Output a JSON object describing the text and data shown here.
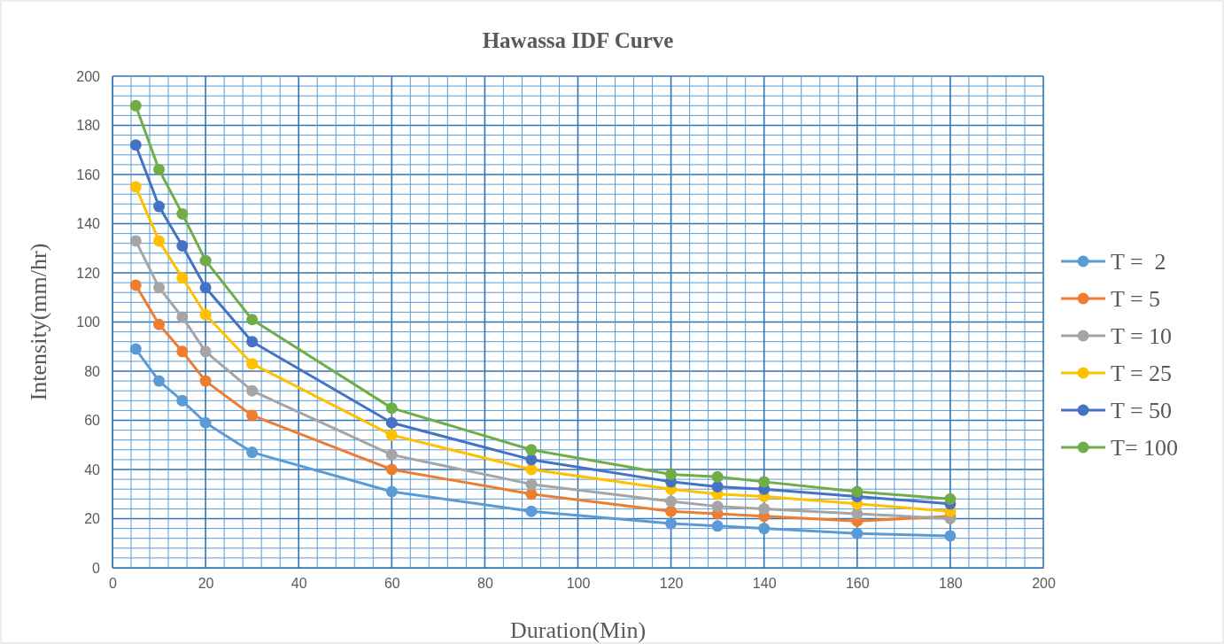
{
  "chart_data": {
    "type": "line",
    "title": "Hawassa IDF Curve",
    "xlabel": "Duration(Min)",
    "ylabel": "Intensity(mm/hr)",
    "x": [
      5,
      10,
      15,
      20,
      30,
      60,
      90,
      120,
      130,
      140,
      160,
      180
    ],
    "xlim": [
      0,
      200
    ],
    "xticks": [
      0,
      {
        "value": 4,
        "label": null
      },
      {
        "value": 8,
        "label": null
      },
      {
        "value": 12,
        "label": null
      },
      {
        "value": 16,
        "label": null
      },
      20,
      {
        "value": 24,
        "label": null
      },
      {
        "value": 28,
        "label": null
      },
      {
        "value": 32,
        "label": null
      },
      {
        "value": 36,
        "label": null
      },
      40,
      {
        "value": 44,
        "label": null
      },
      {
        "value": 48,
        "label": null
      },
      {
        "value": 52,
        "label": null
      },
      {
        "value": 56,
        "label": null
      },
      60,
      {
        "value": 64,
        "label": null
      },
      {
        "value": 68,
        "label": null
      },
      {
        "value": 72,
        "label": null
      },
      {
        "value": 76,
        "label": null
      },
      80,
      {
        "value": 84,
        "label": null
      },
      {
        "value": 88,
        "label": null
      },
      {
        "value": 92,
        "label": null
      },
      {
        "value": 96,
        "label": null
      },
      100,
      {
        "value": 104,
        "label": null
      },
      {
        "value": 108,
        "label": null
      },
      {
        "value": 112,
        "label": null
      },
      {
        "value": 116,
        "label": null
      },
      120,
      {
        "value": 124,
        "label": null
      },
      {
        "value": 128,
        "label": null
      },
      {
        "value": 132,
        "label": null
      },
      {
        "value": 136,
        "label": null
      },
      140,
      {
        "value": 144,
        "label": null
      },
      {
        "value": 148,
        "label": null
      },
      {
        "value": 152,
        "label": null
      },
      {
        "value": 156,
        "label": null
      },
      160,
      {
        "value": 164,
        "label": null
      },
      {
        "value": 168,
        "label": null
      },
      {
        "value": 172,
        "label": null
      },
      {
        "value": 176,
        "label": null
      },
      180,
      {
        "value": 184,
        "label": null
      },
      {
        "value": 188,
        "label": null
      },
      {
        "value": 192,
        "label": null
      },
      {
        "value": 196,
        "label": null
      },
      200
    ],
    "ylim": [
      0,
      200
    ],
    "yticks": [
      0,
      {
        "value": 4,
        "label": null
      },
      {
        "value": 8,
        "label": null
      },
      {
        "value": 12,
        "label": null
      },
      {
        "value": 16,
        "label": null
      },
      20,
      {
        "value": 24,
        "label": null
      },
      {
        "value": 28,
        "label": null
      },
      {
        "value": 32,
        "label": null
      },
      {
        "value": 36,
        "label": null
      },
      40,
      {
        "value": 44,
        "label": null
      },
      {
        "value": 48,
        "label": null
      },
      {
        "value": 52,
        "label": null
      },
      {
        "value": 56,
        "label": null
      },
      60,
      {
        "value": 64,
        "label": null
      },
      {
        "value": 68,
        "label": null
      },
      {
        "value": 72,
        "label": null
      },
      {
        "value": 76,
        "label": null
      },
      80,
      {
        "value": 84,
        "label": null
      },
      {
        "value": 88,
        "label": null
      },
      {
        "value": 92,
        "label": null
      },
      {
        "value": 96,
        "label": null
      },
      100,
      {
        "value": 104,
        "label": null
      },
      {
        "value": 108,
        "label": null
      },
      {
        "value": 112,
        "label": null
      },
      {
        "value": 116,
        "label": null
      },
      120,
      {
        "value": 124,
        "label": null
      },
      {
        "value": 128,
        "label": null
      },
      {
        "value": 132,
        "label": null
      },
      {
        "value": 136,
        "label": null
      },
      140,
      {
        "value": 144,
        "label": null
      },
      {
        "value": 148,
        "label": null
      },
      {
        "value": 152,
        "label": null
      },
      {
        "value": 156,
        "label": null
      },
      160,
      {
        "value": 164,
        "label": null
      },
      {
        "value": 168,
        "label": null
      },
      {
        "value": 172,
        "label": null
      },
      {
        "value": 176,
        "label": null
      },
      180,
      {
        "value": 184,
        "label": null
      },
      {
        "value": 188,
        "label": null
      },
      {
        "value": 192,
        "label": null
      },
      {
        "value": 196,
        "label": null
      },
      200
    ],
    "grid": true,
    "legend": "right",
    "marker": "circle",
    "line_style": "solid",
    "series": [
      {
        "name": "T =  2",
        "color": "#5b9bd5",
        "values": [
          89,
          76,
          68,
          59,
          47,
          31,
          23,
          18,
          17,
          16,
          14,
          13
        ]
      },
      {
        "name": "T = 5",
        "color": "#ed7d31",
        "values": [
          115,
          99,
          88,
          76,
          62,
          40,
          30,
          23,
          22,
          21,
          19,
          21
        ]
      },
      {
        "name": "T = 10",
        "color": "#a5a5a5",
        "values": [
          133,
          114,
          102,
          88,
          72,
          46,
          34,
          27,
          25,
          24,
          22,
          20
        ]
      },
      {
        "name": "T = 25",
        "color": "#ffc000",
        "values": [
          155,
          133,
          118,
          103,
          83,
          54,
          40,
          32,
          30,
          29,
          26,
          23
        ]
      },
      {
        "name": "T = 50",
        "color": "#4472c4",
        "values": [
          172,
          147,
          131,
          114,
          92,
          59,
          44,
          35,
          33,
          32,
          29,
          26
        ]
      },
      {
        "name": "T= 100",
        "color": "#70ad47",
        "values": [
          188,
          162,
          144,
          125,
          101,
          65,
          48,
          38,
          37,
          35,
          31,
          28
        ]
      }
    ]
  }
}
